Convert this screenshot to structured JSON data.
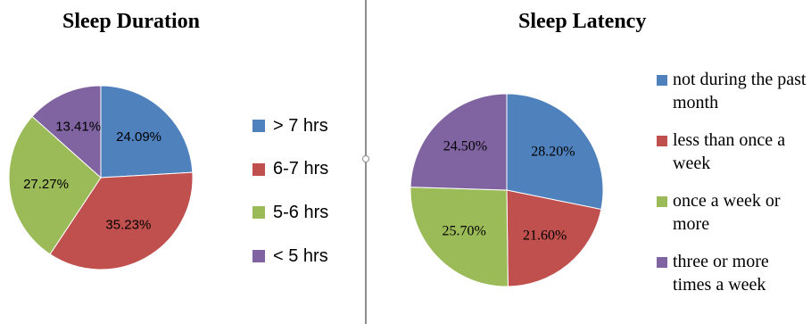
{
  "chart_data": [
    {
      "type": "pie",
      "title": "Sleep Duration",
      "categories": [
        "> 7 hrs",
        "6-7 hrs",
        "5-6 hrs",
        "< 5 hrs"
      ],
      "values": [
        24.09,
        35.23,
        27.27,
        13.41
      ],
      "labels": [
        "24.09%",
        "35.23%",
        "27.27%",
        "13.41%"
      ],
      "colors": [
        "#4f81bd",
        "#c0504d",
        "#9bbb59",
        "#8064a2"
      ],
      "legend": "right"
    },
    {
      "type": "pie",
      "title": "Sleep Latency",
      "categories": [
        "not during the past month",
        "less than once a week",
        "once a week or more",
        "three or more times a week"
      ],
      "values": [
        28.2,
        21.6,
        25.7,
        24.5
      ],
      "labels": [
        "28.20%",
        "21.60%",
        "25.70%",
        "24.50%"
      ],
      "colors": [
        "#4f81bd",
        "#c0504d",
        "#9bbb59",
        "#8064a2"
      ],
      "legend": "right"
    }
  ]
}
